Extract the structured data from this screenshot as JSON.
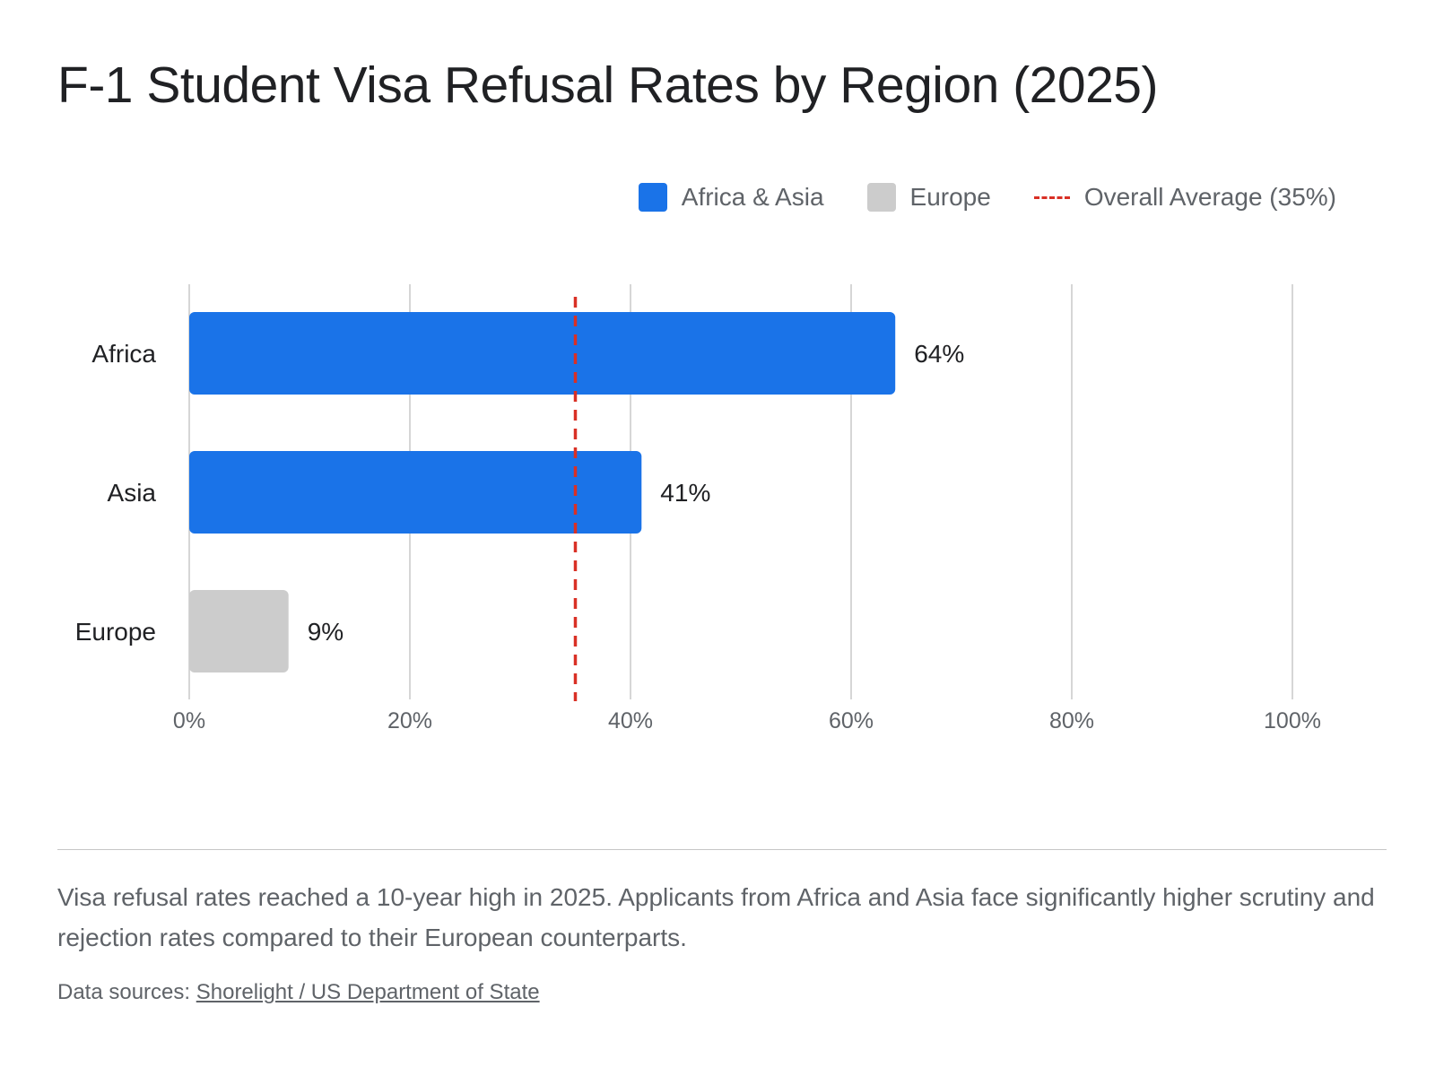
{
  "chart_data": {
    "type": "bar",
    "orientation": "horizontal",
    "title": "F-1 Student Visa Refusal Rates by Region (2025)",
    "categories": [
      "Africa",
      "Asia",
      "Europe"
    ],
    "values": [
      64,
      41,
      9
    ],
    "value_labels": [
      "64%",
      "41%",
      "9%"
    ],
    "bar_groups": [
      "Africa & Asia",
      "Africa & Asia",
      "Europe"
    ],
    "xlim": [
      0,
      100
    ],
    "x_ticks": [
      0,
      20,
      40,
      60,
      80,
      100
    ],
    "x_tick_labels": [
      "0%",
      "20%",
      "40%",
      "60%",
      "80%",
      "100%"
    ],
    "grid": true,
    "legend_position": "top-right",
    "legend": [
      {
        "label": "Africa & Asia",
        "kind": "box",
        "color": "#1a73e8"
      },
      {
        "label": "Europe",
        "kind": "box",
        "color": "#cccccc"
      },
      {
        "label": "Overall Average (35%)",
        "kind": "dashed-line",
        "color": "#d93025"
      }
    ],
    "reference_line": {
      "value": 35,
      "style": "dashed",
      "color": "#d93025"
    },
    "colors": {
      "Africa & Asia": "#1a73e8",
      "Europe": "#cccccc"
    }
  },
  "description": "Visa refusal rates reached a 10-year high in 2025. Applicants from Africa and Asia face significantly higher scrutiny and rejection rates compared to their European counterparts.",
  "sources": {
    "prefix": "Data sources: ",
    "link_text": "Shorelight / US Department of State"
  }
}
